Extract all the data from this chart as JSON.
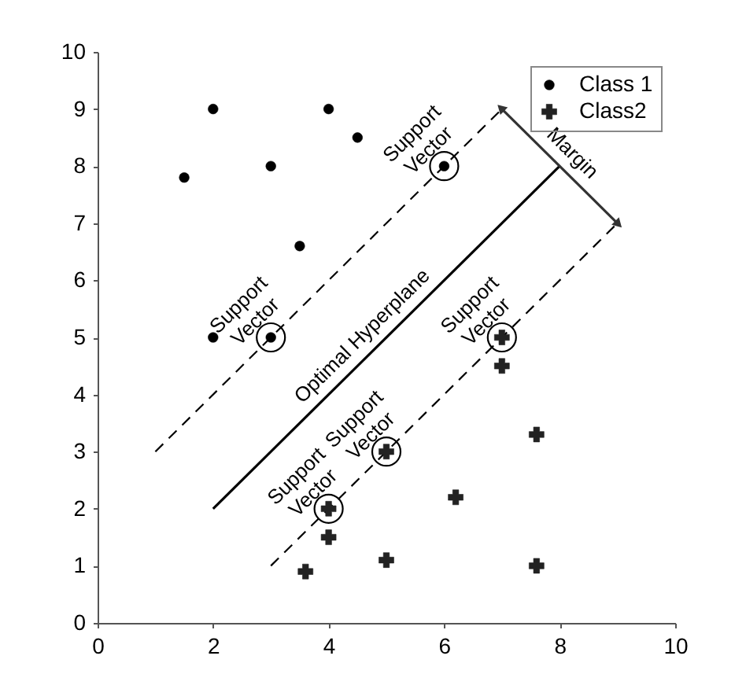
{
  "chart_data": {
    "type": "scatter",
    "xlim": [
      0,
      10
    ],
    "ylim": [
      0,
      10
    ],
    "xticks": [
      0,
      2,
      4,
      6,
      8,
      10
    ],
    "yticks": [
      0,
      1,
      2,
      3,
      4,
      5,
      6,
      7,
      8,
      9,
      10
    ],
    "grid": false,
    "legend": "top right",
    "series": [
      {
        "type": "line",
        "line_style": "solid",
        "color": "#000000",
        "x": [
          2,
          8
        ],
        "values": [
          2,
          8
        ]
      },
      {
        "type": "line",
        "line_style": "dashed",
        "color": "#000000",
        "x": [
          1,
          7
        ],
        "values": [
          3,
          9
        ]
      },
      {
        "type": "line",
        "line_style": "dashed",
        "color": "#000000",
        "x": [
          3,
          9
        ],
        "values": [
          1,
          7
        ]
      },
      {
        "type": "line",
        "line_style": "solid",
        "marker": "triangle",
        "color": "#333333",
        "x": [
          7,
          9
        ],
        "values": [
          9,
          7
        ]
      },
      {
        "name": "Class 1",
        "marker": "circle",
        "color": "#000000",
        "x": [
          1.5,
          2,
          3,
          4,
          4.5,
          3.5,
          2,
          3,
          6
        ],
        "values": [
          7.8,
          9,
          8,
          9,
          8.5,
          6.6,
          5,
          5,
          8
        ]
      },
      {
        "name": "Class2",
        "marker": "cross",
        "color": "#222222",
        "x": [
          4,
          5,
          7,
          7,
          7.6,
          6.2,
          5,
          7.6,
          4,
          3.6
        ],
        "values": [
          2,
          3,
          5,
          4.5,
          3.3,
          2.2,
          1.1,
          1,
          1.5,
          0.9
        ]
      }
    ],
    "annotations": [
      {
        "text": "Support Vector",
        "x": 3,
        "y": 5
      },
      {
        "text": "Support Vector",
        "x": 6,
        "y": 8
      },
      {
        "text": "Support Vector",
        "x": 4,
        "y": 2
      },
      {
        "text": "Support Vector",
        "x": 5,
        "y": 3
      },
      {
        "text": "Support Vector",
        "x": 7,
        "y": 5
      },
      {
        "text": "Optimal Hyperplane",
        "x": 4.8,
        "y": 4.8
      },
      {
        "text": "Margin",
        "x": 8,
        "y": 8
      }
    ]
  }
}
